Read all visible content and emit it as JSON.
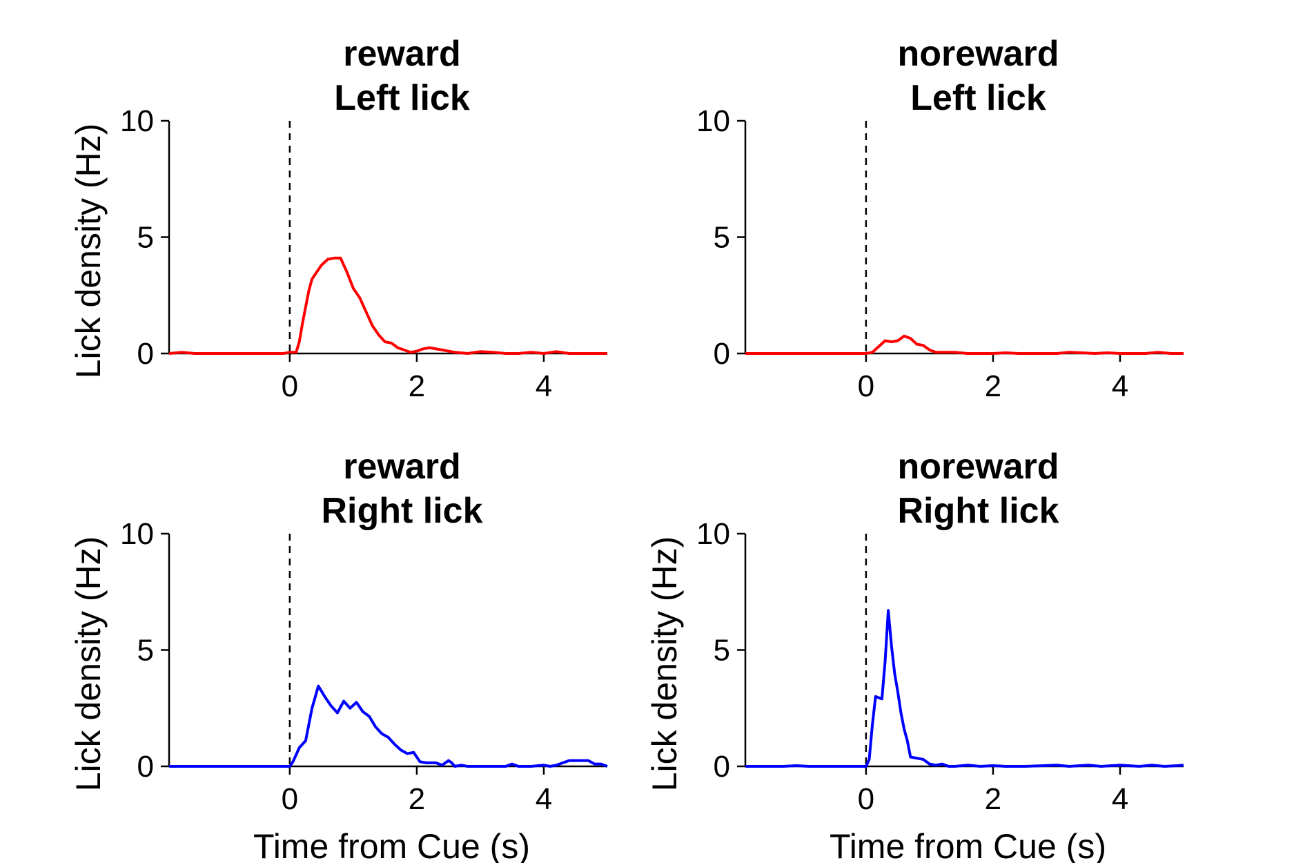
{
  "colors": {
    "left": "#ff0000",
    "right": "#0000ff",
    "axis": "#000000",
    "cue_line": "#000000"
  },
  "chart_data": [
    {
      "type": "line",
      "title": [
        "reward",
        "Left lick"
      ],
      "xlabel": "",
      "ylabel": "Lick density (Hz)",
      "xlim": [
        -1.9,
        5.0
      ],
      "ylim": [
        0,
        10
      ],
      "xticks": [
        0,
        2,
        4
      ],
      "yticks": [
        0,
        5,
        10
      ],
      "cue_time": 0,
      "grid": false,
      "series": [
        {
          "color": "left",
          "x": [
            -1.9,
            -1.7,
            -1.5,
            -1.3,
            -1.1,
            -0.9,
            -0.7,
            -0.5,
            -0.3,
            -0.1,
            0.0,
            0.1,
            0.15,
            0.2,
            0.25,
            0.3,
            0.35,
            0.4,
            0.5,
            0.6,
            0.7,
            0.8,
            0.9,
            1.0,
            1.1,
            1.2,
            1.3,
            1.4,
            1.5,
            1.6,
            1.7,
            1.8,
            1.9,
            2.0,
            2.1,
            2.2,
            2.4,
            2.6,
            2.8,
            3.0,
            3.2,
            3.4,
            3.6,
            3.8,
            4.0,
            4.2,
            4.4,
            4.6,
            4.8,
            5.0
          ],
          "y": [
            0,
            0.05,
            0,
            0,
            0,
            0,
            0,
            0,
            0,
            0,
            0.05,
            0.05,
            0.5,
            1.3,
            2.0,
            2.7,
            3.2,
            3.4,
            3.8,
            4.05,
            4.1,
            4.1,
            3.5,
            2.8,
            2.4,
            1.8,
            1.2,
            0.8,
            0.5,
            0.45,
            0.25,
            0.15,
            0.05,
            0.1,
            0.2,
            0.25,
            0.15,
            0.05,
            0,
            0.08,
            0.05,
            0,
            0,
            0.05,
            0,
            0.08,
            0,
            0,
            0,
            0
          ]
        }
      ]
    },
    {
      "type": "line",
      "title": [
        "noreward",
        "Left lick"
      ],
      "xlabel": "",
      "ylabel": "",
      "xlim": [
        -1.9,
        5.0
      ],
      "ylim": [
        0,
        10
      ],
      "xticks": [
        0,
        2,
        4
      ],
      "yticks": [
        0,
        5,
        10
      ],
      "cue_time": 0,
      "grid": false,
      "series": [
        {
          "color": "left",
          "x": [
            -1.9,
            -1.5,
            -1.0,
            -0.5,
            0.0,
            0.1,
            0.2,
            0.3,
            0.4,
            0.5,
            0.6,
            0.7,
            0.8,
            0.9,
            1.0,
            1.1,
            1.2,
            1.4,
            1.6,
            1.8,
            2.0,
            2.2,
            2.4,
            2.6,
            2.8,
            3.0,
            3.2,
            3.4,
            3.6,
            3.8,
            4.0,
            4.2,
            4.4,
            4.6,
            4.8,
            5.0
          ],
          "y": [
            0,
            0,
            0,
            0,
            0,
            0.05,
            0.3,
            0.55,
            0.5,
            0.55,
            0.75,
            0.65,
            0.4,
            0.35,
            0.15,
            0.05,
            0.05,
            0.05,
            0,
            0,
            0,
            0.03,
            0,
            0,
            0,
            0,
            0.05,
            0.03,
            0,
            0.03,
            0,
            0,
            0,
            0.05,
            0,
            0
          ]
        }
      ]
    },
    {
      "type": "line",
      "title": [
        "reward",
        "Right lick"
      ],
      "xlabel": "Time from Cue (s)",
      "ylabel": "Lick density (Hz)",
      "xlim": [
        -1.9,
        5.0
      ],
      "ylim": [
        0,
        10
      ],
      "xticks": [
        0,
        2,
        4
      ],
      "yticks": [
        0,
        5,
        10
      ],
      "cue_time": 0,
      "grid": false,
      "series": [
        {
          "color": "right",
          "x": [
            -1.9,
            -1.5,
            -1.0,
            -0.5,
            0.0,
            0.05,
            0.1,
            0.15,
            0.25,
            0.35,
            0.45,
            0.55,
            0.65,
            0.75,
            0.85,
            0.95,
            1.05,
            1.15,
            1.25,
            1.35,
            1.45,
            1.55,
            1.65,
            1.75,
            1.85,
            1.95,
            2.05,
            2.15,
            2.3,
            2.4,
            2.5,
            2.55,
            2.6,
            2.7,
            2.8,
            3.0,
            3.2,
            3.4,
            3.5,
            3.6,
            3.8,
            4.0,
            4.1,
            4.2,
            4.3,
            4.4,
            4.6,
            4.7,
            4.8,
            4.9,
            5.0
          ],
          "y": [
            0,
            0,
            0,
            0,
            0,
            0.2,
            0.5,
            0.8,
            1.1,
            2.5,
            3.45,
            3.0,
            2.6,
            2.3,
            2.8,
            2.5,
            2.75,
            2.35,
            2.15,
            1.7,
            1.4,
            1.25,
            0.95,
            0.7,
            0.55,
            0.6,
            0.2,
            0.15,
            0.15,
            0.05,
            0.25,
            0.15,
            0,
            0.05,
            0,
            0,
            0,
            0,
            0.1,
            0,
            0,
            0.05,
            0,
            0.05,
            0.15,
            0.25,
            0.25,
            0.25,
            0.1,
            0.1,
            0
          ]
        }
      ]
    },
    {
      "type": "line",
      "title": [
        "noreward",
        "Right lick"
      ],
      "xlabel": "Time from Cue (s)",
      "ylabel": "Lick density (Hz)",
      "xlim": [
        -1.9,
        5.0
      ],
      "ylim": [
        0,
        10
      ],
      "xticks": [
        0,
        2,
        4
      ],
      "yticks": [
        0,
        5,
        10
      ],
      "cue_time": 0,
      "grid": false,
      "series": [
        {
          "color": "right",
          "x": [
            -1.9,
            -1.7,
            -1.5,
            -1.3,
            -1.1,
            -0.9,
            -0.7,
            -0.5,
            -0.3,
            -0.1,
            0.0,
            0.05,
            0.1,
            0.15,
            0.2,
            0.25,
            0.3,
            0.35,
            0.4,
            0.45,
            0.5,
            0.55,
            0.6,
            0.65,
            0.7,
            0.8,
            0.9,
            1.0,
            1.1,
            1.2,
            1.3,
            1.4,
            1.6,
            1.8,
            2.0,
            2.2,
            2.5,
            2.8,
            3.0,
            3.2,
            3.5,
            3.7,
            4.0,
            4.3,
            4.5,
            4.7,
            4.9,
            5.0
          ],
          "y": [
            0,
            0,
            0,
            0,
            0.03,
            0,
            0,
            0,
            0,
            0,
            0,
            0.3,
            1.8,
            3.0,
            2.95,
            2.9,
            4.5,
            6.7,
            5.2,
            4.0,
            3.2,
            2.3,
            1.6,
            1.1,
            0.4,
            0.35,
            0.3,
            0.1,
            0.05,
            0.1,
            0,
            0,
            0.05,
            0,
            0.03,
            0,
            0,
            0.03,
            0.05,
            0,
            0.05,
            0,
            0.05,
            0,
            0.05,
            0,
            0.03,
            0.05
          ]
        }
      ]
    }
  ]
}
